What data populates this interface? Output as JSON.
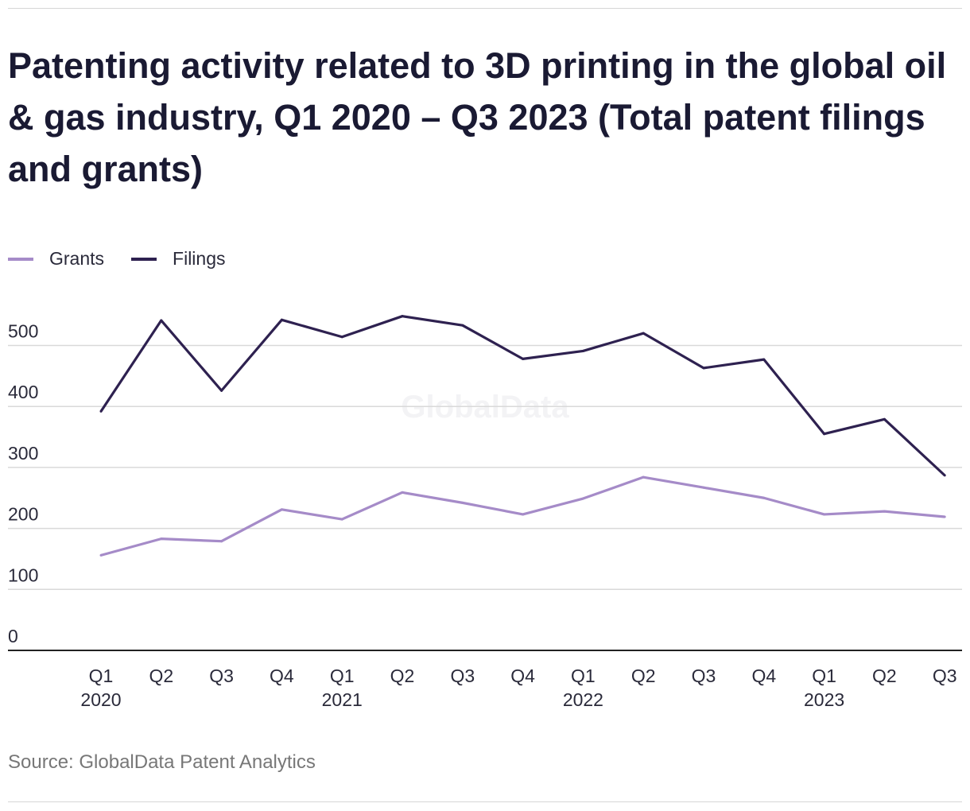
{
  "chart_data": {
    "type": "line",
    "title": "Patenting activity related to 3D printing in the global oil & gas industry, Q1 2020 – Q3 2023 (Total patent filings and grants)",
    "categories": [
      [
        "Q1",
        "2020"
      ],
      [
        "Q2",
        ""
      ],
      [
        "Q3",
        ""
      ],
      [
        "Q4",
        ""
      ],
      [
        "Q1",
        "2021"
      ],
      [
        "Q2",
        ""
      ],
      [
        "Q3",
        ""
      ],
      [
        "Q4",
        ""
      ],
      [
        "Q1",
        "2022"
      ],
      [
        "Q2",
        ""
      ],
      [
        "Q3",
        ""
      ],
      [
        "Q4",
        ""
      ],
      [
        "Q1",
        "2023"
      ],
      [
        "Q2",
        ""
      ],
      [
        "Q3",
        ""
      ]
    ],
    "series": [
      {
        "name": "Grants",
        "color": "#a58bc8",
        "values": [
          156,
          183,
          179,
          231,
          215,
          259,
          242,
          223,
          249,
          284,
          267,
          250,
          223,
          228,
          219
        ]
      },
      {
        "name": "Filings",
        "color": "#2e2150",
        "values": [
          392,
          541,
          426,
          542,
          514,
          548,
          533,
          478,
          491,
          520,
          463,
          477,
          355,
          379,
          287
        ]
      }
    ],
    "yticks": [
      0,
      100,
      200,
      300,
      400,
      500
    ],
    "ylim": [
      0,
      560
    ],
    "grid": true,
    "legend": "top-left",
    "source": "Source: GlobalData Patent Analytics",
    "watermark": "GlobalData"
  }
}
